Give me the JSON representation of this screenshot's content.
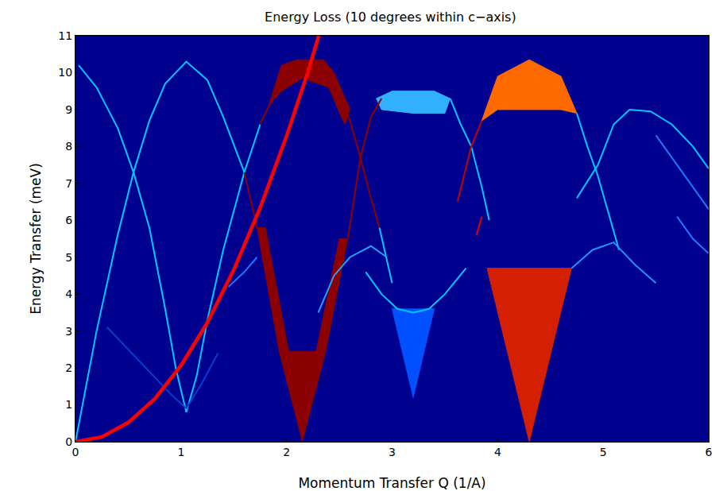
{
  "chart_data": {
    "type": "line",
    "title": "Energy Loss (10 degrees within c−axis)",
    "x_label": "Momentum Transfer Q (1/A)",
    "y_label": "Energy Transfer (meV)",
    "xlim": [
      0,
      6
    ],
    "ylim": [
      0,
      11
    ],
    "xticks": [
      0,
      1,
      2,
      3,
      4,
      5,
      6
    ],
    "yticks": [
      0,
      1,
      2,
      3,
      4,
      5,
      6,
      7,
      8,
      9,
      10,
      11
    ],
    "grid": false,
    "series": [
      {
        "type": "area",
        "color": "#8b0000",
        "x": [
          2.15,
          1.93,
          1.72,
          1.8,
          2.02,
          2.28,
          2.5,
          2.58,
          2.37,
          2.15
        ],
        "values": [
          0,
          2.45,
          5.8,
          5.8,
          2.45,
          2.45,
          5.5,
          5.5,
          2.45,
          0
        ]
      },
      {
        "type": "area",
        "color": "#8b0000",
        "x": [
          1.83,
          1.95,
          2.1,
          2.35,
          2.45,
          2.6,
          2.55,
          2.4,
          2.15,
          1.95,
          1.83
        ],
        "values": [
          9.1,
          10.2,
          10.35,
          10.35,
          10.0,
          9.0,
          8.6,
          9.6,
          9.85,
          9.5,
          9.1
        ]
      },
      {
        "type": "area",
        "color": "#d42000",
        "x": [
          4.3,
          3.9,
          4.7,
          4.3
        ],
        "values": [
          0,
          4.7,
          4.7,
          0
        ]
      },
      {
        "type": "area",
        "color": "#ff6a00",
        "x": [
          3.85,
          4.0,
          4.3,
          4.6,
          4.75,
          4.6,
          4.3,
          4.0,
          3.85
        ],
        "values": [
          8.7,
          9.9,
          10.35,
          9.9,
          8.9,
          9.0,
          9.0,
          9.0,
          8.7
        ]
      },
      {
        "type": "area",
        "color": "#30b0ff",
        "x": [
          2.85,
          3.0,
          3.4,
          3.55,
          3.5,
          3.2,
          2.9,
          2.85
        ],
        "values": [
          9.3,
          9.5,
          9.5,
          9.3,
          8.9,
          8.9,
          9.0,
          9.3
        ]
      },
      {
        "type": "area",
        "color": "#0050ff",
        "x": [
          3.0,
          3.2,
          3.4,
          3.0
        ],
        "values": [
          3.6,
          1.2,
          3.6,
          3.6
        ]
      },
      {
        "type": "line",
        "color": "#00c8ff",
        "x": [
          0,
          0.2,
          0.4,
          0.55,
          0.7,
          0.85,
          1.05,
          1.25,
          1.4,
          1.6
        ],
        "values": [
          0,
          3.0,
          5.6,
          7.3,
          8.7,
          9.7,
          10.3,
          9.8,
          8.8,
          7.3
        ]
      },
      {
        "type": "line",
        "color": "#00c8ff",
        "x": [
          0.03,
          0.2,
          0.4,
          0.55,
          0.7,
          0.85,
          0.95,
          1.05,
          1.15,
          1.25,
          1.4,
          1.6,
          1.75
        ],
        "values": [
          10.2,
          9.6,
          8.5,
          7.3,
          5.8,
          3.6,
          2.0,
          0.8,
          1.8,
          3.3,
          5.2,
          7.3,
          8.6
        ]
      },
      {
        "type": "line",
        "color": "#8b0000",
        "x": [
          1.6,
          1.72
        ],
        "values": [
          7.3,
          5.8
        ]
      },
      {
        "type": "line",
        "color": "#8b0000",
        "x": [
          1.75,
          1.85
        ],
        "values": [
          8.6,
          9.2
        ]
      },
      {
        "type": "line",
        "color": "#8b0000",
        "x": [
          2.45,
          2.6,
          2.7,
          2.8,
          2.88
        ],
        "values": [
          9.8,
          8.7,
          7.7,
          6.6,
          5.8
        ]
      },
      {
        "type": "line",
        "color": "#00c8ff",
        "x": [
          2.88,
          2.95,
          3.0
        ],
        "values": [
          5.8,
          4.9,
          4.3
        ]
      },
      {
        "type": "line",
        "color": "#8b0000",
        "x": [
          2.58,
          2.7,
          2.8,
          2.9
        ],
        "values": [
          5.5,
          7.7,
          8.8,
          9.3
        ]
      },
      {
        "type": "line",
        "color": "#00c8ff",
        "x": [
          2.75,
          2.9,
          3.05,
          3.2,
          3.35,
          3.5,
          3.7
        ],
        "values": [
          4.6,
          4.0,
          3.6,
          3.5,
          3.6,
          4.0,
          4.7
        ]
      },
      {
        "type": "line",
        "color": "#00c8ff",
        "x": [
          3.55,
          3.65,
          3.75,
          3.85,
          3.92
        ],
        "values": [
          9.3,
          8.6,
          8.0,
          6.9,
          6.0
        ]
      },
      {
        "type": "line",
        "color": "#c00000",
        "x": [
          3.62,
          3.75,
          3.85
        ],
        "values": [
          6.5,
          8.0,
          8.7
        ]
      },
      {
        "type": "line",
        "color": "#00c8ff",
        "x": [
          4.75,
          4.85,
          4.95,
          5.05,
          5.15
        ],
        "values": [
          8.9,
          8.0,
          7.2,
          6.2,
          5.2
        ]
      },
      {
        "type": "line",
        "color": "#00c8ff",
        "x": [
          4.75,
          4.95,
          5.1,
          5.25,
          5.45,
          5.65,
          5.85,
          6.0
        ],
        "values": [
          6.6,
          7.5,
          8.6,
          9.0,
          8.95,
          8.6,
          8.0,
          7.4
        ]
      },
      {
        "type": "line",
        "color": "#1e78ff",
        "x": [
          5.5,
          5.75,
          6.0
        ],
        "values": [
          8.3,
          7.3,
          6.3
        ]
      },
      {
        "type": "line",
        "color": "#1e78ff",
        "x": [
          1.45,
          1.6,
          1.72
        ],
        "values": [
          4.2,
          4.6,
          5.0
        ]
      },
      {
        "type": "line",
        "color": "#20a0ff",
        "x": [
          2.3,
          2.45,
          2.6,
          2.8,
          2.95
        ],
        "values": [
          3.5,
          4.5,
          5.0,
          5.3,
          5.0
        ]
      },
      {
        "type": "line",
        "color": "#0040d0",
        "x": [
          0.3,
          0.6,
          0.9,
          1.05
        ],
        "values": [
          3.1,
          2.2,
          1.3,
          0.9
        ]
      },
      {
        "type": "line",
        "color": "#0040d0",
        "x": [
          1.05,
          1.2,
          1.35
        ],
        "values": [
          0.9,
          1.6,
          2.4
        ]
      },
      {
        "type": "line",
        "color": "#2090ff",
        "x": [
          4.7,
          4.9,
          5.1,
          5.3,
          5.5
        ],
        "values": [
          4.7,
          5.2,
          5.4,
          4.8,
          4.3
        ]
      },
      {
        "type": "line",
        "color": "#1e78ff",
        "x": [
          5.7,
          5.85,
          6.0
        ],
        "values": [
          6.1,
          5.5,
          5.1
        ]
      },
      {
        "type": "line",
        "color": "#e00000",
        "x": [
          3.8,
          3.85
        ],
        "values": [
          5.6,
          6.1
        ]
      },
      {
        "type": "line",
        "color": "#ff0000",
        "line_style": "bold",
        "x": [
          0,
          0.25,
          0.5,
          0.75,
          1.0,
          1.25,
          1.5,
          1.75,
          2.0,
          2.2,
          2.305
        ],
        "values": [
          0,
          0.13,
          0.52,
          1.16,
          2.07,
          3.23,
          4.66,
          6.34,
          8.28,
          10.0,
          11.0
        ]
      }
    ]
  }
}
